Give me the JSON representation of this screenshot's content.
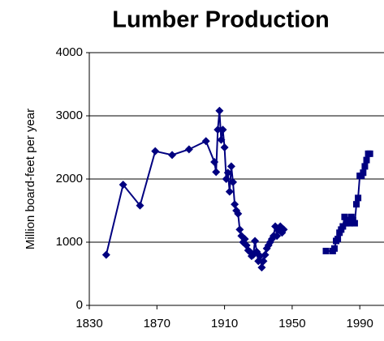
{
  "chart_data": {
    "type": "line",
    "title": "Lumber Production",
    "y_label": "Million board-feet per year",
    "xlim": [
      1830,
      2000
    ],
    "xticks": [
      1830,
      1870,
      1910,
      1950,
      1990
    ],
    "ylim": [
      0,
      4000
    ],
    "yticks": [
      0,
      1000,
      2000,
      3000,
      4000
    ],
    "grid": true,
    "series": [
      {
        "color": "#000080",
        "marker": "diamond",
        "x": [
          1840,
          1850,
          1860,
          1869,
          1879,
          1889,
          1899,
          1904,
          1905,
          1906,
          1907,
          1908,
          1909,
          1910,
          1911,
          1912,
          1913,
          1914,
          1915,
          1916,
          1917,
          1918,
          1919,
          1920,
          1921,
          1922,
          1923,
          1924,
          1925,
          1926,
          1927,
          1928,
          1929,
          1930,
          1931,
          1932,
          1933,
          1934,
          1935,
          1936,
          1937,
          1938,
          1939,
          1940,
          1941,
          1942,
          1943,
          1944,
          1945
        ],
        "values": [
          800,
          1910,
          1580,
          2440,
          2380,
          2470,
          2600,
          2270,
          2110,
          2780,
          3080,
          2620,
          2780,
          2500,
          2000,
          2100,
          1800,
          2200,
          1950,
          1600,
          1500,
          1450,
          1200,
          1100,
          1000,
          1050,
          950,
          870,
          850,
          780,
          800,
          1020,
          850,
          700,
          780,
          600,
          700,
          800,
          900,
          950,
          1000,
          1050,
          1100,
          1250,
          1100,
          1200,
          1250,
          1150,
          1200
        ]
      },
      {
        "color": "#000080",
        "marker": "square",
        "x": [
          1970,
          1974,
          1975,
          1976,
          1977,
          1978,
          1979,
          1980,
          1981,
          1982,
          1983,
          1984,
          1985,
          1986,
          1987,
          1988,
          1989,
          1990,
          1991,
          1992,
          1993,
          1994,
          1995,
          1996
        ],
        "values": [
          860,
          860,
          900,
          1020,
          1050,
          1150,
          1200,
          1250,
          1400,
          1300,
          1350,
          1300,
          1400,
          1350,
          1300,
          1600,
          1700,
          2050,
          2050,
          2100,
          2200,
          2300,
          2400,
          2400
        ]
      }
    ]
  }
}
